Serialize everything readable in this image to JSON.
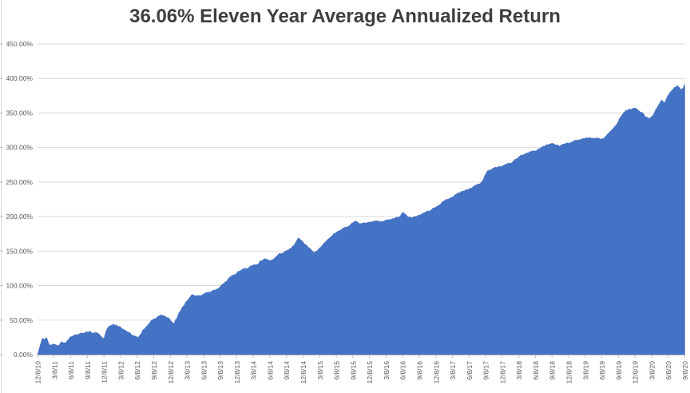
{
  "title": "36.06% Eleven Year Average Annualized Return",
  "colors": {
    "series_fill": "#4472C4",
    "title_text": "#3f3f3f",
    "tick_text": "#595959",
    "gridline": "#d9d9d9",
    "axis_line": "#bfbfbf",
    "background": "#ffffff"
  },
  "chart_data": {
    "type": "area",
    "title": "36.06% Eleven Year Average Annualized Return",
    "xlabel": "",
    "ylabel": "",
    "unit": "percent",
    "legend": "none",
    "grid": "horizontal",
    "ylim": [
      0,
      450
    ],
    "y_tick_step": 50,
    "y_tick_labels": [
      "0.00%",
      "50.00%",
      "100.00%",
      "150.00%",
      "200.00%",
      "250.00%",
      "300.00%",
      "350.00%",
      "400.00%",
      "450.00%"
    ],
    "categories": [
      "12/8/10",
      "3/8/11",
      "6/8/11",
      "9/8/11",
      "12/8/11",
      "3/8/12",
      "6/8/12",
      "9/8/12",
      "12/8/12",
      "3/8/13",
      "6/8/13",
      "9/8/13",
      "12/8/13",
      "3/8/14",
      "6/8/14",
      "9/8/14",
      "12/8/14",
      "3/8/15",
      "6/8/15",
      "9/8/15",
      "12/8/15",
      "3/8/16",
      "6/8/16",
      "9/8/16",
      "12/8/16",
      "3/8/17",
      "6/8/17",
      "9/8/17",
      "12/8/17",
      "3/8/18",
      "6/8/18",
      "9/8/18",
      "12/8/18",
      "3/8/19",
      "6/8/19",
      "9/8/19",
      "12/8/19",
      "3/8/20",
      "6/8/20",
      "9/8/20"
    ],
    "series": [
      {
        "points": [
          [
            0,
            0
          ],
          [
            0.14,
            12
          ],
          [
            0.29,
            24
          ],
          [
            0.43,
            22
          ],
          [
            0.53,
            25
          ],
          [
            0.72,
            14
          ],
          [
            1.01,
            15
          ],
          [
            1.25,
            13
          ],
          [
            1.44,
            19
          ],
          [
            1.69,
            17
          ],
          [
            1.97,
            26
          ],
          [
            2.21,
            28
          ],
          [
            2.41,
            29
          ],
          [
            2.7,
            31
          ],
          [
            2.99,
            33
          ],
          [
            3.18,
            34
          ],
          [
            3.37,
            31
          ],
          [
            3.56,
            32
          ],
          [
            3.71,
            30
          ],
          [
            3.85,
            26
          ],
          [
            4,
            23
          ],
          [
            4.14,
            35
          ],
          [
            4.28,
            41
          ],
          [
            4.48,
            43
          ],
          [
            4.62,
            44
          ],
          [
            4.81,
            42
          ],
          [
            5.01,
            40
          ],
          [
            5.25,
            36
          ],
          [
            5.44,
            33
          ],
          [
            5.63,
            30
          ],
          [
            5.83,
            27
          ],
          [
            6.02,
            25
          ],
          [
            6.21,
            30
          ],
          [
            6.4,
            37
          ],
          [
            6.6,
            42
          ],
          [
            6.79,
            47
          ],
          [
            6.98,
            52
          ],
          [
            7.22,
            55
          ],
          [
            7.46,
            58
          ],
          [
            7.75,
            54
          ],
          [
            7.99,
            51
          ],
          [
            8.19,
            45
          ],
          [
            8.38,
            52
          ],
          [
            8.52,
            61
          ],
          [
            8.76,
            70
          ],
          [
            9,
            78
          ],
          [
            9.2,
            84
          ],
          [
            9.29,
            87
          ],
          [
            9.48,
            85
          ],
          [
            9.68,
            86
          ],
          [
            10.01,
            88
          ],
          [
            10.25,
            90
          ],
          [
            10.5,
            92
          ],
          [
            10.74,
            94
          ],
          [
            10.98,
            98
          ],
          [
            11.22,
            103
          ],
          [
            11.46,
            109
          ],
          [
            11.7,
            114
          ],
          [
            11.99,
            118
          ],
          [
            12.28,
            123
          ],
          [
            12.52,
            125
          ],
          [
            12.76,
            127
          ],
          [
            13,
            130
          ],
          [
            13.24,
            131
          ],
          [
            13.48,
            136
          ],
          [
            13.72,
            139
          ],
          [
            14.01,
            136
          ],
          [
            14.25,
            139
          ],
          [
            14.49,
            145
          ],
          [
            14.73,
            147
          ],
          [
            14.97,
            150
          ],
          [
            15.21,
            154
          ],
          [
            15.45,
            158
          ],
          [
            15.7,
            169
          ],
          [
            15.98,
            164
          ],
          [
            16.27,
            157
          ],
          [
            16.47,
            152
          ],
          [
            16.66,
            148
          ],
          [
            16.9,
            152
          ],
          [
            17.14,
            158
          ],
          [
            17.48,
            167
          ],
          [
            17.77,
            173
          ],
          [
            18.01,
            177
          ],
          [
            18.25,
            181
          ],
          [
            18.44,
            183
          ],
          [
            18.73,
            186
          ],
          [
            18.97,
            191
          ],
          [
            19.21,
            193
          ],
          [
            19.5,
            190
          ],
          [
            19.74,
            191
          ],
          [
            19.98,
            192
          ],
          [
            20.27,
            193
          ],
          [
            20.46,
            194
          ],
          [
            20.75,
            193
          ],
          [
            20.99,
            195
          ],
          [
            21.23,
            196
          ],
          [
            21.47,
            197
          ],
          [
            21.76,
            199
          ],
          [
            22.05,
            206
          ],
          [
            22.29,
            200
          ],
          [
            22.53,
            198
          ],
          [
            22.77,
            200
          ],
          [
            23.01,
            202
          ],
          [
            23.25,
            205
          ],
          [
            23.49,
            208
          ],
          [
            23.73,
            210
          ],
          [
            23.97,
            213
          ],
          [
            24.21,
            217
          ],
          [
            24.45,
            222
          ],
          [
            24.7,
            225
          ],
          [
            24.98,
            228
          ],
          [
            25.22,
            232
          ],
          [
            25.46,
            235
          ],
          [
            25.7,
            237
          ],
          [
            25.99,
            240
          ],
          [
            26.23,
            243
          ],
          [
            26.47,
            246
          ],
          [
            26.67,
            248
          ],
          [
            26.81,
            252
          ],
          [
            26.96,
            260
          ],
          [
            27.1,
            266
          ],
          [
            27.29,
            268
          ],
          [
            27.49,
            270
          ],
          [
            27.73,
            272
          ],
          [
            27.97,
            273
          ],
          [
            28.21,
            276
          ],
          [
            28.45,
            277
          ],
          [
            28.69,
            281
          ],
          [
            28.93,
            285
          ],
          [
            29.17,
            289
          ],
          [
            29.42,
            292
          ],
          [
            29.66,
            294
          ],
          [
            29.95,
            295
          ],
          [
            30.23,
            298
          ],
          [
            30.47,
            302
          ],
          [
            30.71,
            304
          ],
          [
            30.95,
            306
          ],
          [
            31.19,
            304
          ],
          [
            31.44,
            302
          ],
          [
            31.68,
            305
          ],
          [
            31.92,
            307
          ],
          [
            32.21,
            308
          ],
          [
            32.45,
            310
          ],
          [
            32.69,
            312
          ],
          [
            32.93,
            313
          ],
          [
            33.22,
            314
          ],
          [
            33.46,
            314
          ],
          [
            33.7,
            313
          ],
          [
            33.94,
            312
          ],
          [
            34.18,
            315
          ],
          [
            34.42,
            321
          ],
          [
            34.66,
            327
          ],
          [
            34.9,
            334
          ],
          [
            35.15,
            345
          ],
          [
            35.39,
            352
          ],
          [
            35.63,
            356
          ],
          [
            35.77,
            355
          ],
          [
            36.01,
            357
          ],
          [
            36.25,
            353
          ],
          [
            36.49,
            350
          ],
          [
            36.64,
            344
          ],
          [
            36.83,
            342
          ],
          [
            36.97,
            344
          ],
          [
            37.12,
            348
          ],
          [
            37.31,
            357
          ],
          [
            37.45,
            363
          ],
          [
            37.6,
            369
          ],
          [
            37.79,
            365
          ],
          [
            37.93,
            373
          ],
          [
            38.08,
            379
          ],
          [
            38.27,
            384
          ],
          [
            38.41,
            388
          ],
          [
            38.56,
            390
          ],
          [
            38.75,
            384
          ],
          [
            38.9,
            386
          ],
          [
            38.99,
            392
          ],
          [
            39,
            389
          ]
        ]
      }
    ]
  }
}
